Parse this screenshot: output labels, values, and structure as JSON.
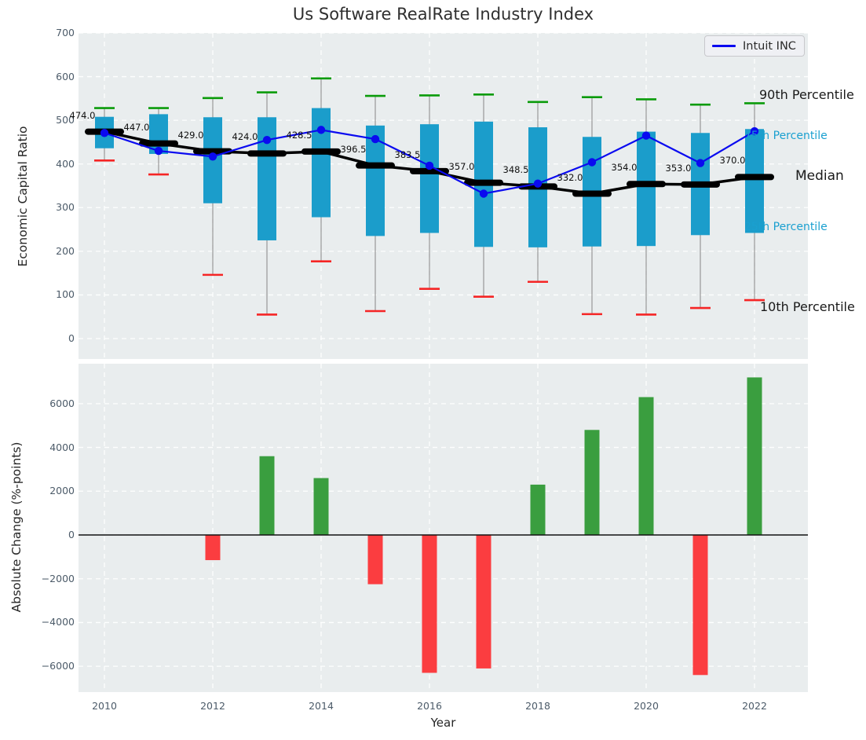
{
  "title": "Us Software RealRate Industry Index",
  "chart_data": [
    {
      "type": "boxplot-with-line",
      "title": "Us Software RealRate Industry Index",
      "ylabel": "Economic Capital Ratio",
      "ylim": [
        0,
        700
      ],
      "yticks": [
        0,
        100,
        200,
        300,
        400,
        500,
        600,
        700
      ],
      "x": [
        2010,
        2011,
        2012,
        2013,
        2014,
        2015,
        2016,
        2017,
        2018,
        2019,
        2020,
        2021,
        2022
      ],
      "xticks": [
        2010,
        2012,
        2014,
        2016,
        2018,
        2020,
        2022
      ],
      "grid": true,
      "legend": {
        "label": "Intuit INC",
        "position": "upper right"
      },
      "annotations": {
        "p90": "90th Percentile",
        "p75": "75th Percentile",
        "median": "Median",
        "p25": "25th Percentile",
        "p10": "10th Percentile"
      },
      "series": [
        {
          "name": "90th Percentile",
          "role": "p90",
          "values": [
            528,
            528,
            551,
            564,
            596,
            556,
            557,
            559,
            542,
            553,
            548,
            536,
            539
          ]
        },
        {
          "name": "75th Percentile",
          "role": "p75",
          "values": [
            508,
            514,
            507,
            507,
            528,
            488,
            491,
            497,
            484,
            462,
            474,
            471,
            480
          ]
        },
        {
          "name": "Median",
          "role": "median",
          "values": [
            474.0,
            447.0,
            429.0,
            424.0,
            428.5,
            396.5,
            383.5,
            357.0,
            348.5,
            332.0,
            354.0,
            353.0,
            370.0
          ]
        },
        {
          "name": "25th Percentile",
          "role": "p25",
          "values": [
            436,
            423,
            310,
            225,
            278,
            235,
            242,
            210,
            209,
            211,
            212,
            237,
            242
          ]
        },
        {
          "name": "10th Percentile",
          "role": "p10",
          "values": [
            408,
            376,
            146,
            55,
            177,
            63,
            114,
            96,
            130,
            56,
            55,
            70,
            88
          ]
        },
        {
          "name": "Intuit INC",
          "role": "intuit",
          "values": [
            471,
            430,
            417,
            455,
            478,
            457,
            396,
            332,
            355,
            404,
            465,
            402,
            475
          ]
        }
      ]
    },
    {
      "type": "bar",
      "ylabel": "Absolute Change (%-points)",
      "xlabel": "Year",
      "ylim": [
        -7200,
        7800
      ],
      "yticks": [
        -6000,
        -4000,
        -2000,
        0,
        2000,
        4000,
        6000
      ],
      "categories": [
        2010,
        2011,
        2012,
        2013,
        2014,
        2015,
        2016,
        2017,
        2018,
        2019,
        2020,
        2021,
        2022
      ],
      "xticks": [
        2010,
        2012,
        2014,
        2016,
        2018,
        2020,
        2022
      ],
      "values": [
        0,
        0,
        -1150,
        3600,
        2600,
        -2250,
        -6300,
        -6100,
        2300,
        4800,
        6300,
        -6400,
        7200
      ],
      "grid": true,
      "zero_line": true
    }
  ],
  "colors": {
    "plot_background": "#e9edee",
    "gridline": "#ffffff",
    "box": "#1b9dcb",
    "whisker": "#8f8f8f",
    "p90_cap": "#0a9b0a",
    "p10_cap": "#f52525",
    "median": "#000000",
    "intuit": "#0a0af0",
    "bar_positive": "#3a9e3f",
    "bar_negative": "#fb3d40",
    "tick_label": "#4c5b69",
    "percentile_label_cyan": "#1aa0d0",
    "zero_line": "#111111"
  }
}
